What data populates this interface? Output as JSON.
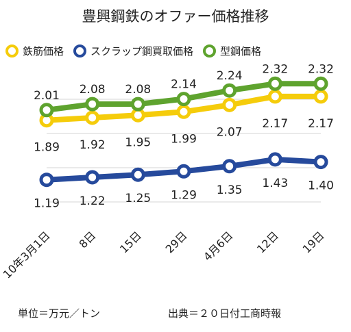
{
  "chart_data": {
    "type": "line",
    "title": "豊興鋼鉄のオファー価格推移",
    "categories": [
      "10年3月1日",
      "8日",
      "15日",
      "29日",
      "4月6日",
      "12日",
      "19日"
    ],
    "series": [
      {
        "name": "鉄筋価格",
        "color": "#f5cc0b",
        "values": [
          1.89,
          1.92,
          1.95,
          1.99,
          2.07,
          2.17,
          2.17
        ],
        "labels": [
          "1.89",
          "1.92",
          "1.95",
          "1.99",
          "2.07",
          "2.17",
          "2.17"
        ]
      },
      {
        "name": "スクラップ鋼買取価格",
        "color": "#264a9c",
        "values": [
          1.19,
          1.22,
          1.25,
          1.29,
          1.35,
          1.43,
          1.4
        ],
        "labels": [
          "1.19",
          "1.22",
          "1.25",
          "1.29",
          "1.35",
          "1.43",
          "1.40"
        ]
      },
      {
        "name": "型鋼価格",
        "color": "#5ea32e",
        "values": [
          2.01,
          2.08,
          2.08,
          2.14,
          2.24,
          2.32,
          2.32
        ],
        "labels": [
          "2.01",
          "2.08",
          "2.08",
          "2.14",
          "2.24",
          "2.32",
          "2.32"
        ]
      }
    ],
    "grid": true,
    "legend_position": "top"
  },
  "footer": {
    "unit": "単位＝万元／トン",
    "source": "出典＝２０日付工商時報"
  }
}
